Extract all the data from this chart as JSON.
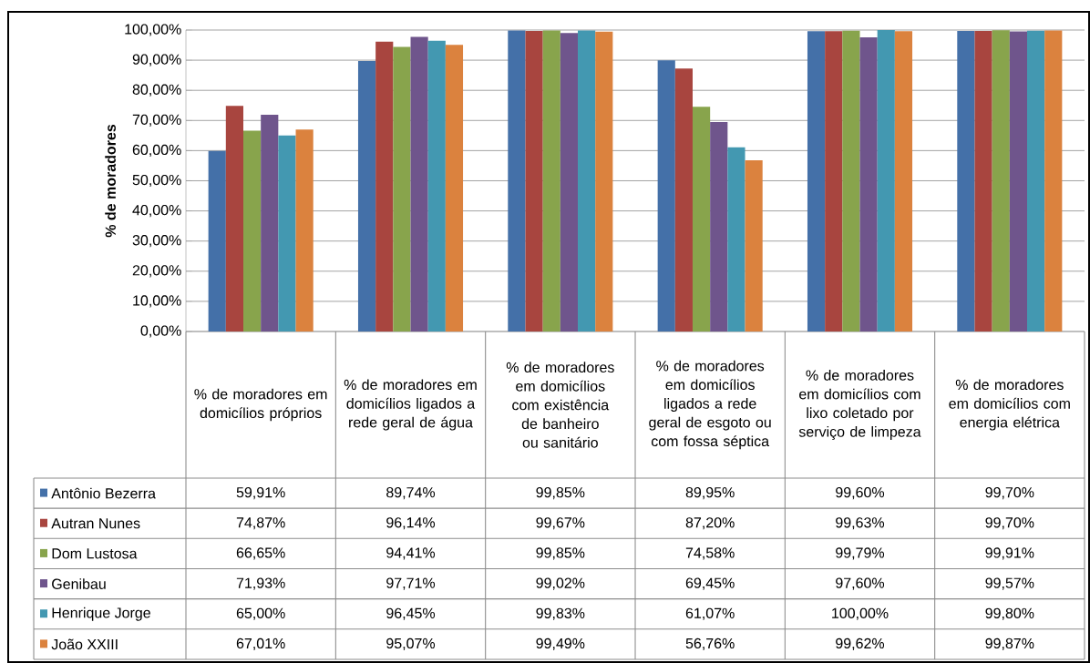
{
  "chart_data": {
    "type": "bar",
    "ylabel": "% de moradores",
    "grid": "y",
    "legend": "bottom left",
    "categories": [
      "% de moradores em domicílios próprios",
      "% de moradores em domicílios ligados a rede geral de água",
      "% de moradores em domicílios com existência de banheiro ou sanitário",
      "% de moradores em domicílios ligados a rede geral de esgoto ou com fossa séptica",
      "% de moradores em domicílios com lixo coletado por serviço de limpeza",
      "% de moradores em domicílios com energia elétrica"
    ],
    "ylim": [
      0,
      100
    ],
    "yticks": [
      {
        "value": 0,
        "label": "0,00%"
      },
      {
        "value": 10,
        "label": "10,00%"
      },
      {
        "value": 20,
        "label": "20,00%"
      },
      {
        "value": 30,
        "label": "30,00%"
      },
      {
        "value": 40,
        "label": "40,00%"
      },
      {
        "value": 50,
        "label": "50,00%"
      },
      {
        "value": 60,
        "label": "60,00%"
      },
      {
        "value": 70,
        "label": "70,00%"
      },
      {
        "value": 80,
        "label": "80,00%"
      },
      {
        "value": 90,
        "label": "90,00%"
      },
      {
        "value": 100,
        "label": "100,00%"
      }
    ],
    "series": [
      {
        "name": "Antônio Bezerra",
        "color": "#4470a8",
        "values": [
          59.91,
          89.74,
          99.85,
          89.95,
          99.6,
          99.7
        ],
        "value_labels": [
          "59,91%",
          "89,74%",
          "99,85%",
          "89,95%",
          "99,60%",
          "99,70%"
        ]
      },
      {
        "name": "Autran Nunes",
        "color": "#a8453f",
        "values": [
          74.87,
          96.14,
          99.67,
          87.2,
          99.63,
          99.7
        ],
        "value_labels": [
          "74,87%",
          "96,14%",
          "99,67%",
          "87,20%",
          "99,63%",
          "99,70%"
        ]
      },
      {
        "name": "Dom Lustosa",
        "color": "#88a44c",
        "values": [
          66.65,
          94.41,
          99.85,
          74.58,
          99.79,
          99.91
        ],
        "value_labels": [
          "66,65%",
          "94,41%",
          "99,85%",
          "74,58%",
          "99,79%",
          "99,91%"
        ]
      },
      {
        "name": "Genibau",
        "color": "#6f558c",
        "values": [
          71.93,
          97.71,
          99.02,
          69.45,
          97.6,
          99.57
        ],
        "value_labels": [
          "71,93%",
          "97,71%",
          "99,02%",
          "69,45%",
          "97,60%",
          "99,57%"
        ]
      },
      {
        "name": "Henrique Jorge",
        "color": "#4398b1",
        "values": [
          65.0,
          96.45,
          99.83,
          61.07,
          100.0,
          99.8
        ],
        "value_labels": [
          "65,00%",
          "96,45%",
          "99,83%",
          "61,07%",
          "100,00%",
          "99,80%"
        ]
      },
      {
        "name": "João XXIII",
        "color": "#db823e",
        "values": [
          67.01,
          95.07,
          99.49,
          56.76,
          99.62,
          99.87
        ],
        "value_labels": [
          "67,01%",
          "95,07%",
          "99,49%",
          "56,76%",
          "99,62%",
          "99,87%"
        ]
      }
    ]
  }
}
